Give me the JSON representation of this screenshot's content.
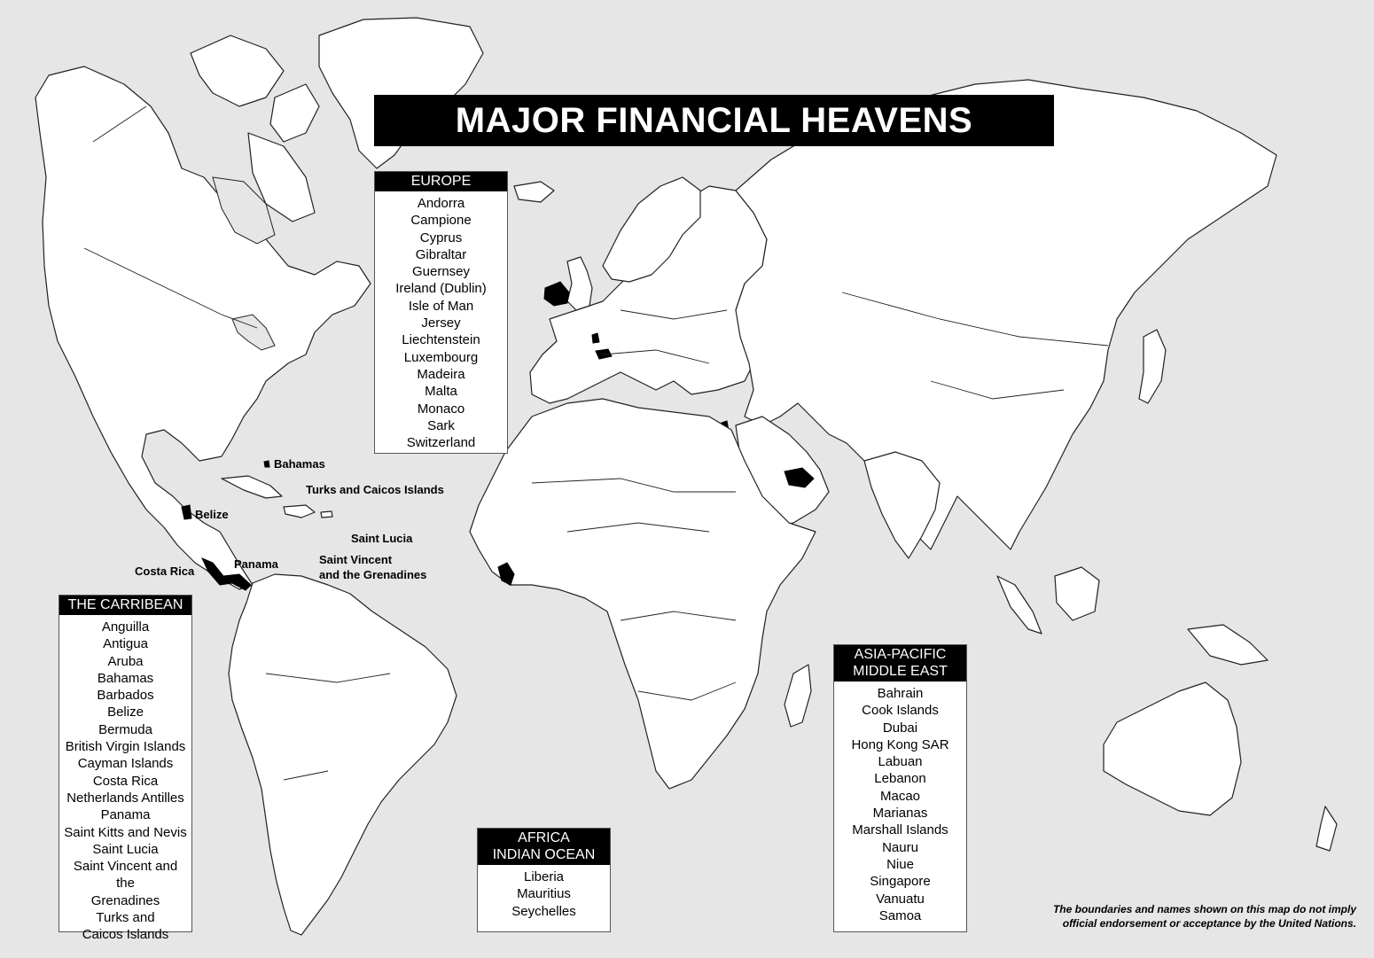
{
  "title": "MAJOR FINANCIAL HEAVENS",
  "panels": {
    "europe": {
      "heading": "EUROPE",
      "items": [
        "Andorra",
        "Campione",
        "Cyprus",
        "Gibraltar",
        "Guernsey",
        "Ireland (Dublin)",
        "Isle of Man",
        "Jersey",
        "Liechtenstein",
        "Luxembourg",
        "Madeira",
        "Malta",
        "Monaco",
        "Sark",
        "Switzerland"
      ]
    },
    "caribbean": {
      "heading": "THE CARRIBEAN",
      "items": [
        "Anguilla",
        "Antigua",
        "Aruba",
        "Bahamas",
        "Barbados",
        "Belize",
        "Bermuda",
        "British Virgin Islands",
        "Cayman Islands",
        "Costa Rica",
        "Netherlands Antilles",
        "Panama",
        "Saint Kitts and Nevis",
        "Saint Lucia",
        "Saint Vincent and the",
        "Grenadines",
        "Turks and",
        "Caicos Islands"
      ]
    },
    "africa": {
      "heading_line1": "AFRICA",
      "heading_line2": "INDIAN OCEAN",
      "items": [
        "Liberia",
        "Mauritius",
        "Seychelles"
      ]
    },
    "asia": {
      "heading_line1": "ASIA-PACIFIC",
      "heading_line2": "MIDDLE EAST",
      "items": [
        "Bahrain",
        "Cook Islands",
        "Dubai",
        "Hong Kong SAR",
        "Labuan",
        "Lebanon",
        "Macao",
        "Marianas",
        "Marshall Islands",
        "Nauru",
        "Niue",
        "Singapore",
        "Vanuatu",
        "Samoa"
      ]
    }
  },
  "map_labels": {
    "bahamas": "Bahamas",
    "turks_caicos": "Turks and Caicos Islands",
    "belize": "Belize",
    "saint_lucia": "Saint Lucia",
    "saint_vincent_line1": "Saint Vincent",
    "saint_vincent_line2": "and the Grenadines",
    "costa_rica": "Costa Rica",
    "panama": "Panama"
  },
  "disclaimer": {
    "line1": "The boundaries and names shown on this map do not imply",
    "line2": "official endorsement or acceptance by the United Nations."
  },
  "colors": {
    "ocean": "#e6e6e6",
    "land": "#ffffff",
    "highlight": "#000000"
  }
}
